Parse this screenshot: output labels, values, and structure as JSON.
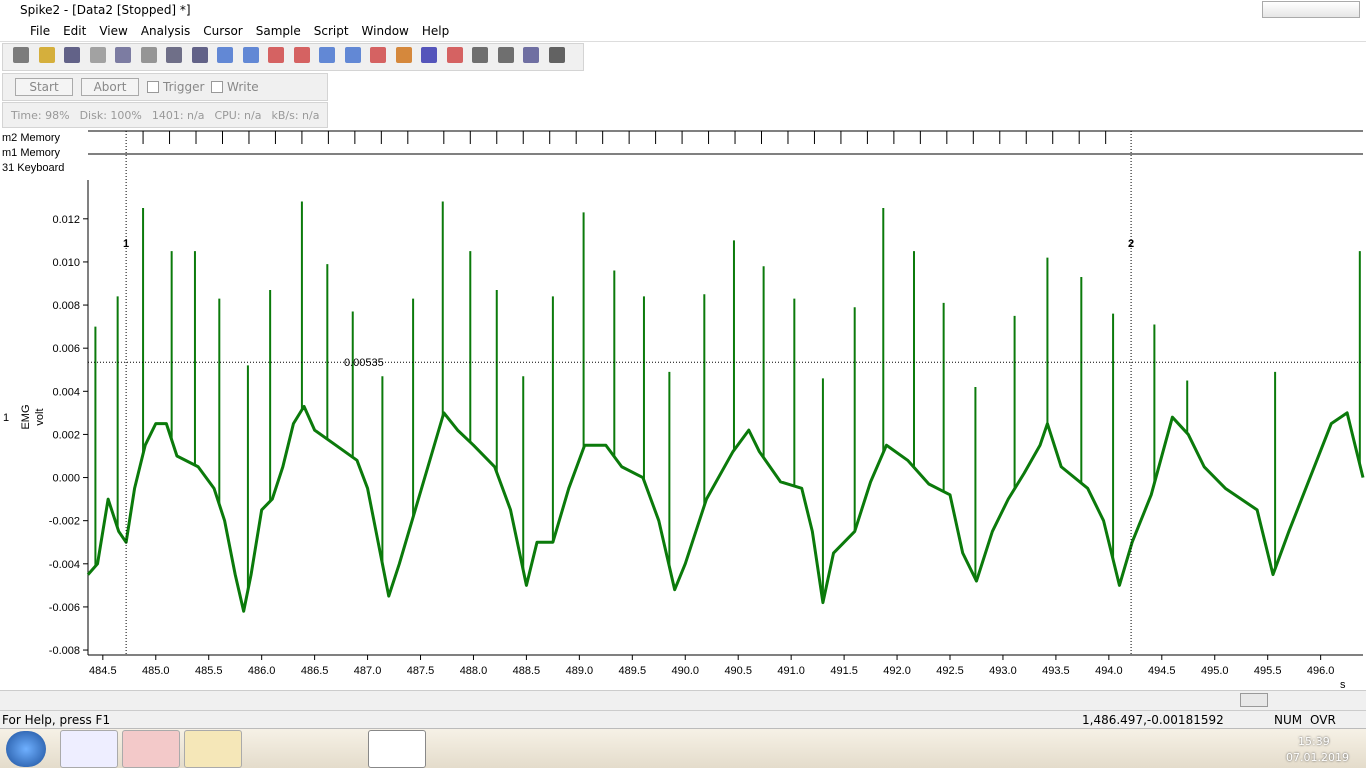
{
  "window": {
    "title": "Spike2 - [Data2 [Stopped] *]",
    "menu": [
      "File",
      "Edit",
      "View",
      "Analysis",
      "Cursor",
      "Sample",
      "Script",
      "Window",
      "Help"
    ]
  },
  "toolbar": {
    "start": "Start",
    "abort": "Abort",
    "trigger": "Trigger",
    "write": "Write",
    "status": [
      "Time: 98%",
      "Disk: 100%",
      "1401: n/a",
      "CPU: n/a",
      "kB/s: n/a"
    ]
  },
  "channels": [
    "m2 Memory",
    "m1 Memory",
    "31  Keyboard"
  ],
  "chart_data": {
    "type": "line",
    "channel": "1",
    "ylabel": "EMG",
    "yunit": "volt",
    "xunit": "s",
    "xlim": [
      484.36,
      496.4
    ],
    "ylim": [
      -0.00823,
      0.0138
    ],
    "xticks": [
      484.5,
      {
        "value": 485,
        "label": "485.0"
      },
      485.5,
      {
        "value": 486,
        "label": "486.0"
      },
      486.5,
      {
        "value": 487,
        "label": "487.0"
      },
      487.5,
      {
        "value": 488,
        "label": "488.0"
      },
      488.5,
      {
        "value": 489,
        "label": "489.0"
      },
      489.5,
      {
        "value": 490,
        "label": "490.0"
      },
      490.5,
      {
        "value": 491,
        "label": "491.0"
      },
      491.5,
      {
        "value": 492,
        "label": "492.0"
      },
      492.5,
      {
        "value": 493,
        "label": "493.0"
      },
      493.5,
      {
        "value": 494,
        "label": "494.0"
      },
      494.5,
      {
        "value": 495,
        "label": "495.0"
      },
      495.5,
      {
        "value": 496,
        "label": "496.0"
      }
    ],
    "yticks": [
      -0.008,
      -0.006,
      -0.004,
      -0.002,
      {
        "value": 0,
        "label": "0.000"
      },
      0.002,
      0.004,
      0.006,
      0.008,
      {
        "value": 0.01,
        "label": "0.010"
      },
      0.012
    ],
    "x": [
      484.36,
      484.45,
      484.55,
      484.65,
      484.72,
      484.8,
      484.9,
      485.0,
      485.1,
      485.2,
      485.4,
      485.55,
      485.65,
      485.75,
      485.83,
      485.9,
      486.0,
      486.1,
      486.2,
      486.3,
      486.4,
      486.5,
      486.7,
      486.9,
      487.0,
      487.1,
      487.2,
      487.3,
      487.45,
      487.6,
      487.72,
      487.85,
      488.0,
      488.2,
      488.35,
      488.5,
      488.6,
      488.75,
      488.9,
      489.05,
      489.25,
      489.4,
      489.6,
      489.75,
      489.9,
      490.0,
      490.2,
      490.45,
      490.6,
      490.7,
      490.9,
      491.1,
      491.2,
      491.3,
      491.4,
      491.6,
      491.75,
      491.9,
      492.1,
      492.3,
      492.5,
      492.62,
      492.75,
      492.9,
      493.05,
      493.2,
      493.35,
      493.42,
      493.55,
      493.8,
      493.95,
      494.1,
      494.22,
      494.4,
      494.6,
      494.75,
      494.9,
      495.1,
      495.4,
      495.55,
      495.7,
      495.9,
      496.1,
      496.25,
      496.4
    ],
    "series": [
      {
        "color": "#0b7a0b",
        "values": [
          -0.0045,
          -0.004,
          -0.001,
          -0.0025,
          -0.003,
          -0.0005,
          0.0015,
          0.0025,
          0.0025,
          0.001,
          0.0005,
          -0.0005,
          -0.002,
          -0.0045,
          -0.0062,
          -0.0045,
          -0.0015,
          -0.001,
          0.0005,
          0.0025,
          0.0033,
          0.0022,
          0.0015,
          0.0008,
          -0.0005,
          -0.003,
          -0.0055,
          -0.004,
          -0.0015,
          0.001,
          0.003,
          0.0022,
          0.0015,
          0.0005,
          -0.0015,
          -0.005,
          -0.003,
          -0.003,
          -0.0005,
          0.0015,
          0.0015,
          0.0005,
          0.0,
          -0.002,
          -0.0052,
          -0.004,
          -0.001,
          0.0012,
          0.0022,
          0.0012,
          -0.0002,
          -0.0005,
          -0.0025,
          -0.0058,
          -0.0035,
          -0.0025,
          -0.0002,
          0.0015,
          0.0008,
          -0.0003,
          -0.0008,
          -0.0035,
          -0.0048,
          -0.0025,
          -0.001,
          0.0002,
          0.0015,
          0.0025,
          0.0005,
          -0.0005,
          -0.002,
          -0.005,
          -0.003,
          -0.0008,
          0.0028,
          0.002,
          0.0005,
          -0.0005,
          -0.0015,
          -0.0045,
          -0.0025,
          0.0,
          0.0025,
          0.003,
          0.0
        ]
      }
    ],
    "spikes": {
      "x": [
        484.43,
        484.64,
        484.88,
        485.15,
        485.37,
        485.6,
        485.87,
        486.08,
        486.38,
        486.62,
        486.86,
        487.14,
        487.43,
        487.71,
        487.97,
        488.22,
        488.47,
        488.75,
        489.04,
        489.33,
        489.61,
        489.85,
        490.18,
        490.46,
        490.74,
        491.03,
        491.3,
        491.6,
        491.87,
        492.16,
        492.44,
        492.74,
        493.11,
        493.42,
        493.74,
        494.04,
        494.43,
        494.74,
        495.57,
        496.37
      ],
      "values": [
        0.007,
        0.0084,
        0.0125,
        0.0105,
        0.0105,
        0.0083,
        0.0052,
        0.0087,
        0.0128,
        0.0099,
        0.0077,
        0.0047,
        0.0083,
        0.0128,
        0.0105,
        0.0087,
        0.0047,
        0.0084,
        0.0123,
        0.0096,
        0.0084,
        0.0049,
        0.0085,
        0.011,
        0.0098,
        0.0083,
        0.0046,
        0.0079,
        0.0125,
        0.0105,
        0.0081,
        0.0042,
        0.0075,
        0.0102,
        0.0093,
        0.0076,
        0.0071,
        0.0045,
        0.0049,
        0.0105
      ]
    },
    "events": [
      484.88,
      485.13,
      485.38,
      485.63,
      485.88,
      486.13,
      486.38,
      486.63,
      486.88,
      487.13,
      487.38,
      487.72,
      487.97,
      488.22,
      488.47,
      488.72,
      488.97,
      489.22,
      489.47,
      489.72,
      489.97,
      490.22,
      490.47,
      490.72,
      490.97,
      491.22,
      491.47,
      491.72,
      491.97,
      492.22,
      492.47,
      492.72,
      492.97,
      493.22,
      493.47,
      493.72,
      493.97
    ],
    "cursors": [
      {
        "label": "1",
        "x": 484.72
      },
      {
        "label": "2",
        "x": 494.21
      }
    ],
    "hcursor": 0.00535
  },
  "statusbar": {
    "help": "For Help, press F1",
    "position": "1,486.497,-0.00181592",
    "num": "NUM",
    "ovr": "OVR"
  },
  "taskbar": {
    "time": "15:39",
    "date": "07.01.2019"
  }
}
